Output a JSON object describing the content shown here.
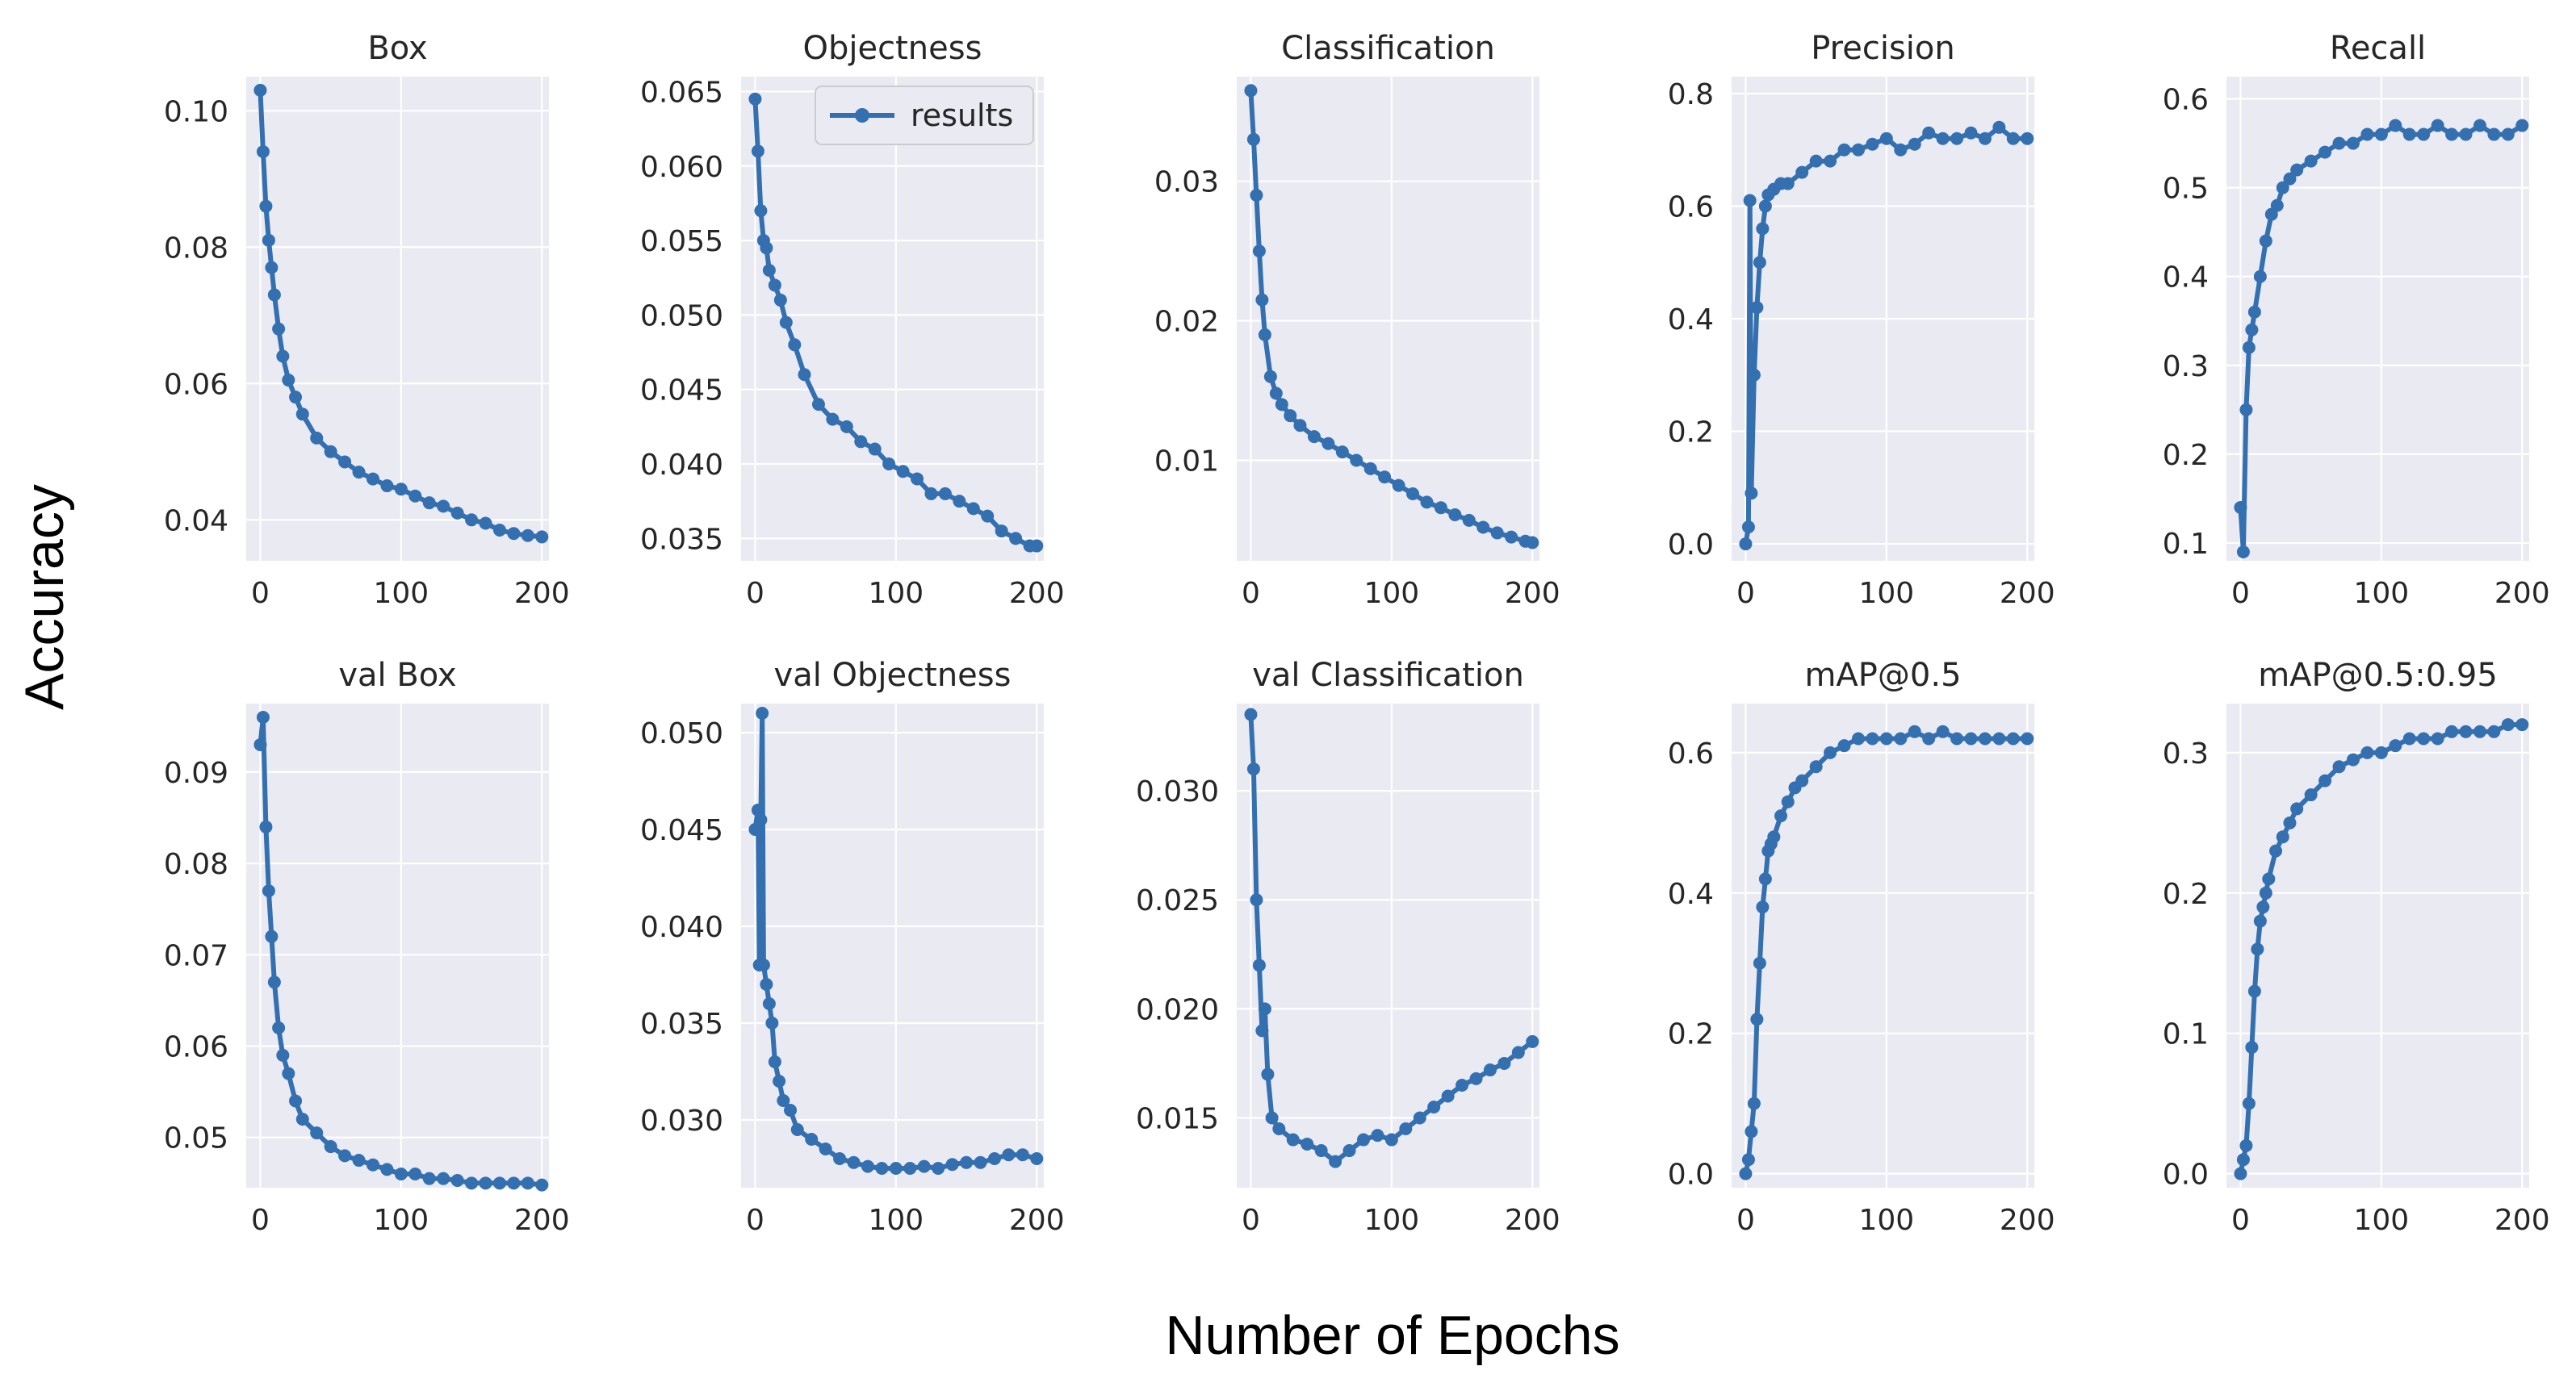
{
  "figure": {
    "ylabel": "Accuracy",
    "xlabel": "Number of Epochs",
    "series_color": "#3470b0",
    "plot_bg": "#eaeaf2",
    "grid_color": "#ffffff"
  },
  "legend": {
    "label": "results"
  },
  "chart_data": [
    {
      "type": "line",
      "title": "Box",
      "xlim": [
        -10,
        205
      ],
      "ylim": [
        0.034,
        0.105
      ],
      "xticks": [
        0,
        100,
        200
      ],
      "xtick_labels": [
        "0",
        "100",
        "200"
      ],
      "yticks": [
        0.04,
        0.06,
        0.08,
        0.1
      ],
      "ytick_labels": [
        "0.04",
        "0.06",
        "0.08",
        "0.10"
      ],
      "x": [
        0,
        2,
        4,
        6,
        8,
        10,
        13,
        16,
        20,
        25,
        30,
        40,
        50,
        60,
        70,
        80,
        90,
        100,
        110,
        120,
        130,
        140,
        150,
        160,
        170,
        180,
        190,
        200
      ],
      "y": [
        0.103,
        0.094,
        0.086,
        0.081,
        0.077,
        0.073,
        0.068,
        0.064,
        0.0605,
        0.058,
        0.0555,
        0.052,
        0.05,
        0.0485,
        0.047,
        0.046,
        0.045,
        0.0445,
        0.0435,
        0.0425,
        0.042,
        0.041,
        0.04,
        0.0395,
        0.0385,
        0.038,
        0.0377,
        0.0375
      ]
    },
    {
      "type": "line",
      "title": "Objectness",
      "xlim": [
        -10,
        205
      ],
      "ylim": [
        0.0335,
        0.066
      ],
      "show_legend": true,
      "xticks": [
        0,
        100,
        200
      ],
      "xtick_labels": [
        "0",
        "100",
        "200"
      ],
      "yticks": [
        0.035,
        0.04,
        0.045,
        0.05,
        0.055,
        0.06,
        0.065
      ],
      "ytick_labels": [
        "0.035",
        "0.040",
        "0.045",
        "0.050",
        "0.055",
        "0.060",
        "0.065"
      ],
      "x": [
        0,
        2,
        4,
        6,
        8,
        10,
        14,
        18,
        22,
        28,
        35,
        45,
        55,
        65,
        75,
        85,
        95,
        105,
        115,
        125,
        135,
        145,
        155,
        165,
        175,
        185,
        195,
        200
      ],
      "y": [
        0.0645,
        0.061,
        0.057,
        0.055,
        0.0545,
        0.053,
        0.052,
        0.051,
        0.0495,
        0.048,
        0.046,
        0.044,
        0.043,
        0.0425,
        0.0415,
        0.041,
        0.04,
        0.0395,
        0.039,
        0.038,
        0.038,
        0.0375,
        0.037,
        0.0365,
        0.0355,
        0.035,
        0.0345,
        0.0345
      ]
    },
    {
      "type": "line",
      "title": "Classification",
      "xlim": [
        -10,
        205
      ],
      "ylim": [
        0.0028,
        0.0375
      ],
      "xticks": [
        0,
        100,
        200
      ],
      "xtick_labels": [
        "0",
        "100",
        "200"
      ],
      "yticks": [
        0.01,
        0.02,
        0.03
      ],
      "ytick_labels": [
        "0.01",
        "0.02",
        "0.03"
      ],
      "x": [
        0,
        2,
        4,
        6,
        8,
        10,
        14,
        18,
        22,
        28,
        35,
        45,
        55,
        65,
        75,
        85,
        95,
        105,
        115,
        125,
        135,
        145,
        155,
        165,
        175,
        185,
        195,
        200
      ],
      "y": [
        0.0365,
        0.033,
        0.029,
        0.025,
        0.0215,
        0.019,
        0.016,
        0.0148,
        0.014,
        0.0132,
        0.0125,
        0.0117,
        0.0112,
        0.0106,
        0.01,
        0.0094,
        0.0088,
        0.0082,
        0.0076,
        0.007,
        0.0066,
        0.0061,
        0.0057,
        0.0052,
        0.0048,
        0.0045,
        0.0042,
        0.0041
      ]
    },
    {
      "type": "line",
      "title": "Precision",
      "xlim": [
        -10,
        205
      ],
      "ylim": [
        -0.03,
        0.83
      ],
      "xticks": [
        0,
        100,
        200
      ],
      "xtick_labels": [
        "0",
        "100",
        "200"
      ],
      "yticks": [
        0.0,
        0.2,
        0.4,
        0.6,
        0.8
      ],
      "ytick_labels": [
        "0.0",
        "0.2",
        "0.4",
        "0.6",
        "0.8"
      ],
      "x": [
        0,
        2,
        3,
        4,
        6,
        8,
        10,
        12,
        14,
        16,
        20,
        25,
        30,
        40,
        50,
        60,
        70,
        80,
        90,
        100,
        110,
        120,
        130,
        140,
        150,
        160,
        170,
        180,
        190,
        200
      ],
      "y": [
        0.0,
        0.03,
        0.61,
        0.09,
        0.3,
        0.42,
        0.5,
        0.56,
        0.6,
        0.62,
        0.63,
        0.64,
        0.64,
        0.66,
        0.68,
        0.68,
        0.7,
        0.7,
        0.71,
        0.72,
        0.7,
        0.71,
        0.73,
        0.72,
        0.72,
        0.73,
        0.72,
        0.74,
        0.72,
        0.72
      ]
    },
    {
      "type": "line",
      "title": "Recall",
      "xlim": [
        -10,
        205
      ],
      "ylim": [
        0.08,
        0.625
      ],
      "xticks": [
        0,
        100,
        200
      ],
      "xtick_labels": [
        "0",
        "100",
        "200"
      ],
      "yticks": [
        0.1,
        0.2,
        0.3,
        0.4,
        0.5,
        0.6
      ],
      "ytick_labels": [
        "0.1",
        "0.2",
        "0.3",
        "0.4",
        "0.5",
        "0.6"
      ],
      "x": [
        0,
        2,
        4,
        6,
        8,
        10,
        14,
        18,
        22,
        26,
        30,
        35,
        40,
        50,
        60,
        70,
        80,
        90,
        100,
        110,
        120,
        130,
        140,
        150,
        160,
        170,
        180,
        190,
        200
      ],
      "y": [
        0.14,
        0.09,
        0.25,
        0.32,
        0.34,
        0.36,
        0.4,
        0.44,
        0.47,
        0.48,
        0.5,
        0.51,
        0.52,
        0.53,
        0.54,
        0.55,
        0.55,
        0.56,
        0.56,
        0.57,
        0.56,
        0.56,
        0.57,
        0.56,
        0.56,
        0.57,
        0.56,
        0.56,
        0.57
      ]
    },
    {
      "type": "line",
      "title": "val Box",
      "xlim": [
        -10,
        205
      ],
      "ylim": [
        0.0445,
        0.0975
      ],
      "xticks": [
        0,
        100,
        200
      ],
      "xtick_labels": [
        "0",
        "100",
        "200"
      ],
      "yticks": [
        0.05,
        0.06,
        0.07,
        0.08,
        0.09
      ],
      "ytick_labels": [
        "0.05",
        "0.06",
        "0.07",
        "0.08",
        "0.09"
      ],
      "x": [
        0,
        2,
        4,
        6,
        8,
        10,
        13,
        16,
        20,
        25,
        30,
        40,
        50,
        60,
        70,
        80,
        90,
        100,
        110,
        120,
        130,
        140,
        150,
        160,
        170,
        180,
        190,
        200
      ],
      "y": [
        0.093,
        0.096,
        0.084,
        0.077,
        0.072,
        0.067,
        0.062,
        0.059,
        0.057,
        0.054,
        0.052,
        0.0505,
        0.049,
        0.048,
        0.0475,
        0.047,
        0.0465,
        0.046,
        0.046,
        0.0455,
        0.0455,
        0.0453,
        0.045,
        0.045,
        0.045,
        0.045,
        0.045,
        0.0448
      ]
    },
    {
      "type": "line",
      "title": "val Objectness",
      "xlim": [
        -10,
        205
      ],
      "ylim": [
        0.0265,
        0.0515
      ],
      "xticks": [
        0,
        100,
        200
      ],
      "xtick_labels": [
        "0",
        "100",
        "200"
      ],
      "yticks": [
        0.03,
        0.035,
        0.04,
        0.045,
        0.05
      ],
      "ytick_labels": [
        "0.030",
        "0.035",
        "0.040",
        "0.045",
        "0.050"
      ],
      "x": [
        0,
        2,
        3,
        4,
        5,
        6,
        8,
        10,
        12,
        14,
        17,
        20,
        25,
        30,
        40,
        50,
        60,
        70,
        80,
        90,
        100,
        110,
        120,
        130,
        140,
        150,
        160,
        170,
        180,
        190,
        200
      ],
      "y": [
        0.045,
        0.046,
        0.038,
        0.0455,
        0.051,
        0.038,
        0.037,
        0.036,
        0.035,
        0.033,
        0.032,
        0.031,
        0.0305,
        0.0295,
        0.029,
        0.0285,
        0.028,
        0.0278,
        0.0276,
        0.0275,
        0.0275,
        0.0275,
        0.0276,
        0.0275,
        0.0277,
        0.0278,
        0.0278,
        0.028,
        0.0282,
        0.0282,
        0.028
      ]
    },
    {
      "type": "line",
      "title": "val Classification",
      "xlim": [
        -10,
        205
      ],
      "ylim": [
        0.0118,
        0.034
      ],
      "xticks": [
        0,
        100,
        200
      ],
      "xtick_labels": [
        "0",
        "100",
        "200"
      ],
      "yticks": [
        0.015,
        0.02,
        0.025,
        0.03
      ],
      "ytick_labels": [
        "0.015",
        "0.020",
        "0.025",
        "0.030"
      ],
      "x": [
        0,
        2,
        4,
        6,
        8,
        10,
        12,
        15,
        20,
        30,
        40,
        50,
        60,
        70,
        80,
        90,
        100,
        110,
        120,
        130,
        140,
        150,
        160,
        170,
        180,
        190,
        200
      ],
      "y": [
        0.0335,
        0.031,
        0.025,
        0.022,
        0.019,
        0.02,
        0.017,
        0.015,
        0.0145,
        0.014,
        0.0138,
        0.0135,
        0.013,
        0.0135,
        0.014,
        0.0142,
        0.014,
        0.0145,
        0.015,
        0.0155,
        0.016,
        0.0165,
        0.0168,
        0.0172,
        0.0175,
        0.018,
        0.0185
      ]
    },
    {
      "type": "line",
      "title": "mAP@0.5",
      "xlim": [
        -10,
        205
      ],
      "ylim": [
        -0.02,
        0.67
      ],
      "xticks": [
        0,
        100,
        200
      ],
      "xtick_labels": [
        "0",
        "100",
        "200"
      ],
      "yticks": [
        0.0,
        0.2,
        0.4,
        0.6
      ],
      "ytick_labels": [
        "0.0",
        "0.2",
        "0.4",
        "0.6"
      ],
      "x": [
        0,
        2,
        4,
        6,
        8,
        10,
        12,
        14,
        16,
        18,
        20,
        25,
        30,
        35,
        40,
        50,
        60,
        70,
        80,
        90,
        100,
        110,
        120,
        130,
        140,
        150,
        160,
        170,
        180,
        190,
        200
      ],
      "y": [
        0.0,
        0.02,
        0.06,
        0.1,
        0.22,
        0.3,
        0.38,
        0.42,
        0.46,
        0.47,
        0.48,
        0.51,
        0.53,
        0.55,
        0.56,
        0.58,
        0.6,
        0.61,
        0.62,
        0.62,
        0.62,
        0.62,
        0.63,
        0.62,
        0.63,
        0.62,
        0.62,
        0.62,
        0.62,
        0.62,
        0.62
      ]
    },
    {
      "type": "line",
      "title": "mAP@0.5:0.95",
      "xlim": [
        -10,
        205
      ],
      "ylim": [
        -0.01,
        0.335
      ],
      "xticks": [
        0,
        100,
        200
      ],
      "xtick_labels": [
        "0",
        "100",
        "200"
      ],
      "yticks": [
        0.0,
        0.1,
        0.2,
        0.3
      ],
      "ytick_labels": [
        "0.0",
        "0.1",
        "0.2",
        "0.3"
      ],
      "x": [
        0,
        2,
        4,
        6,
        8,
        10,
        12,
        14,
        16,
        18,
        20,
        25,
        30,
        35,
        40,
        50,
        60,
        70,
        80,
        90,
        100,
        110,
        120,
        130,
        140,
        150,
        160,
        170,
        180,
        190,
        200
      ],
      "y": [
        0.0,
        0.01,
        0.02,
        0.05,
        0.09,
        0.13,
        0.16,
        0.18,
        0.19,
        0.2,
        0.21,
        0.23,
        0.24,
        0.25,
        0.26,
        0.27,
        0.28,
        0.29,
        0.295,
        0.3,
        0.3,
        0.305,
        0.31,
        0.31,
        0.31,
        0.315,
        0.315,
        0.315,
        0.315,
        0.32,
        0.32
      ]
    }
  ]
}
